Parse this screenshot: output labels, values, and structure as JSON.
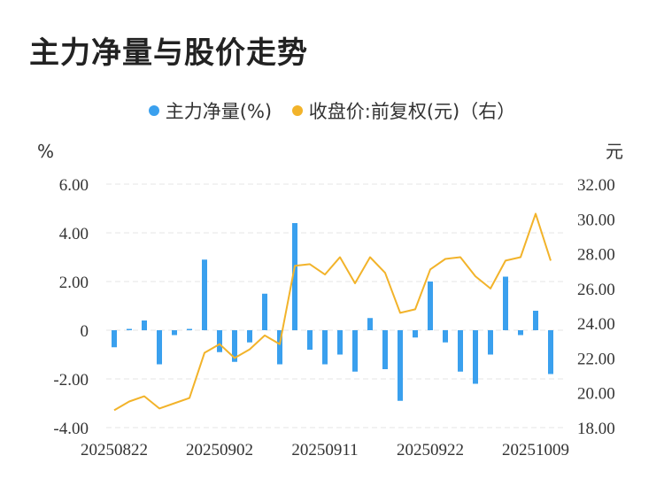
{
  "title": "主力净量与股价走势",
  "legend": {
    "series1": "主力净量(%)",
    "series2": "收盘价:前复权(元)（右）"
  },
  "colors": {
    "bar": "#3aa0ee",
    "line": "#f2b32a",
    "grid": "#e6e6e6"
  },
  "chart_data": {
    "type": "bar+line",
    "left_unit": "%",
    "right_unit": "元",
    "y_left_ticks": [
      "6.00",
      "4.00",
      "2.00",
      "0",
      "-2.00",
      "-4.00"
    ],
    "y_right_ticks": [
      "32.00",
      "30.00",
      "28.00",
      "26.00",
      "24.00",
      "22.00",
      "20.00",
      "18.00"
    ],
    "ylim_left": [
      -4,
      6
    ],
    "ylim_right": [
      18,
      32
    ],
    "x_tick_labels": [
      "20250822",
      "20250902",
      "20250911",
      "20250922",
      "20251009"
    ],
    "x_tick_indices": [
      0,
      7,
      14,
      21,
      28
    ],
    "series": [
      {
        "name": "主力净量(%)",
        "type": "bar",
        "values": [
          -0.7,
          0.05,
          0.4,
          -1.4,
          -0.2,
          0.05,
          2.9,
          -0.9,
          -1.3,
          -0.5,
          1.5,
          -1.4,
          4.4,
          -0.8,
          -1.4,
          -1.0,
          -1.7,
          0.5,
          -1.6,
          -2.9,
          -0.3,
          2.0,
          -0.5,
          -1.7,
          -2.2,
          -1.0,
          2.2,
          -0.2,
          0.8,
          -1.8
        ]
      },
      {
        "name": "收盘价:前复权(元)（右）",
        "type": "line",
        "values": [
          19.0,
          19.5,
          19.8,
          19.1,
          19.4,
          19.7,
          22.3,
          22.8,
          22.0,
          22.5,
          23.3,
          22.8,
          27.3,
          27.4,
          26.8,
          27.8,
          26.3,
          27.8,
          26.9,
          24.6,
          24.8,
          27.1,
          27.7,
          27.8,
          26.7,
          26.0,
          27.6,
          27.8,
          30.3,
          27.6
        ]
      }
    ]
  }
}
